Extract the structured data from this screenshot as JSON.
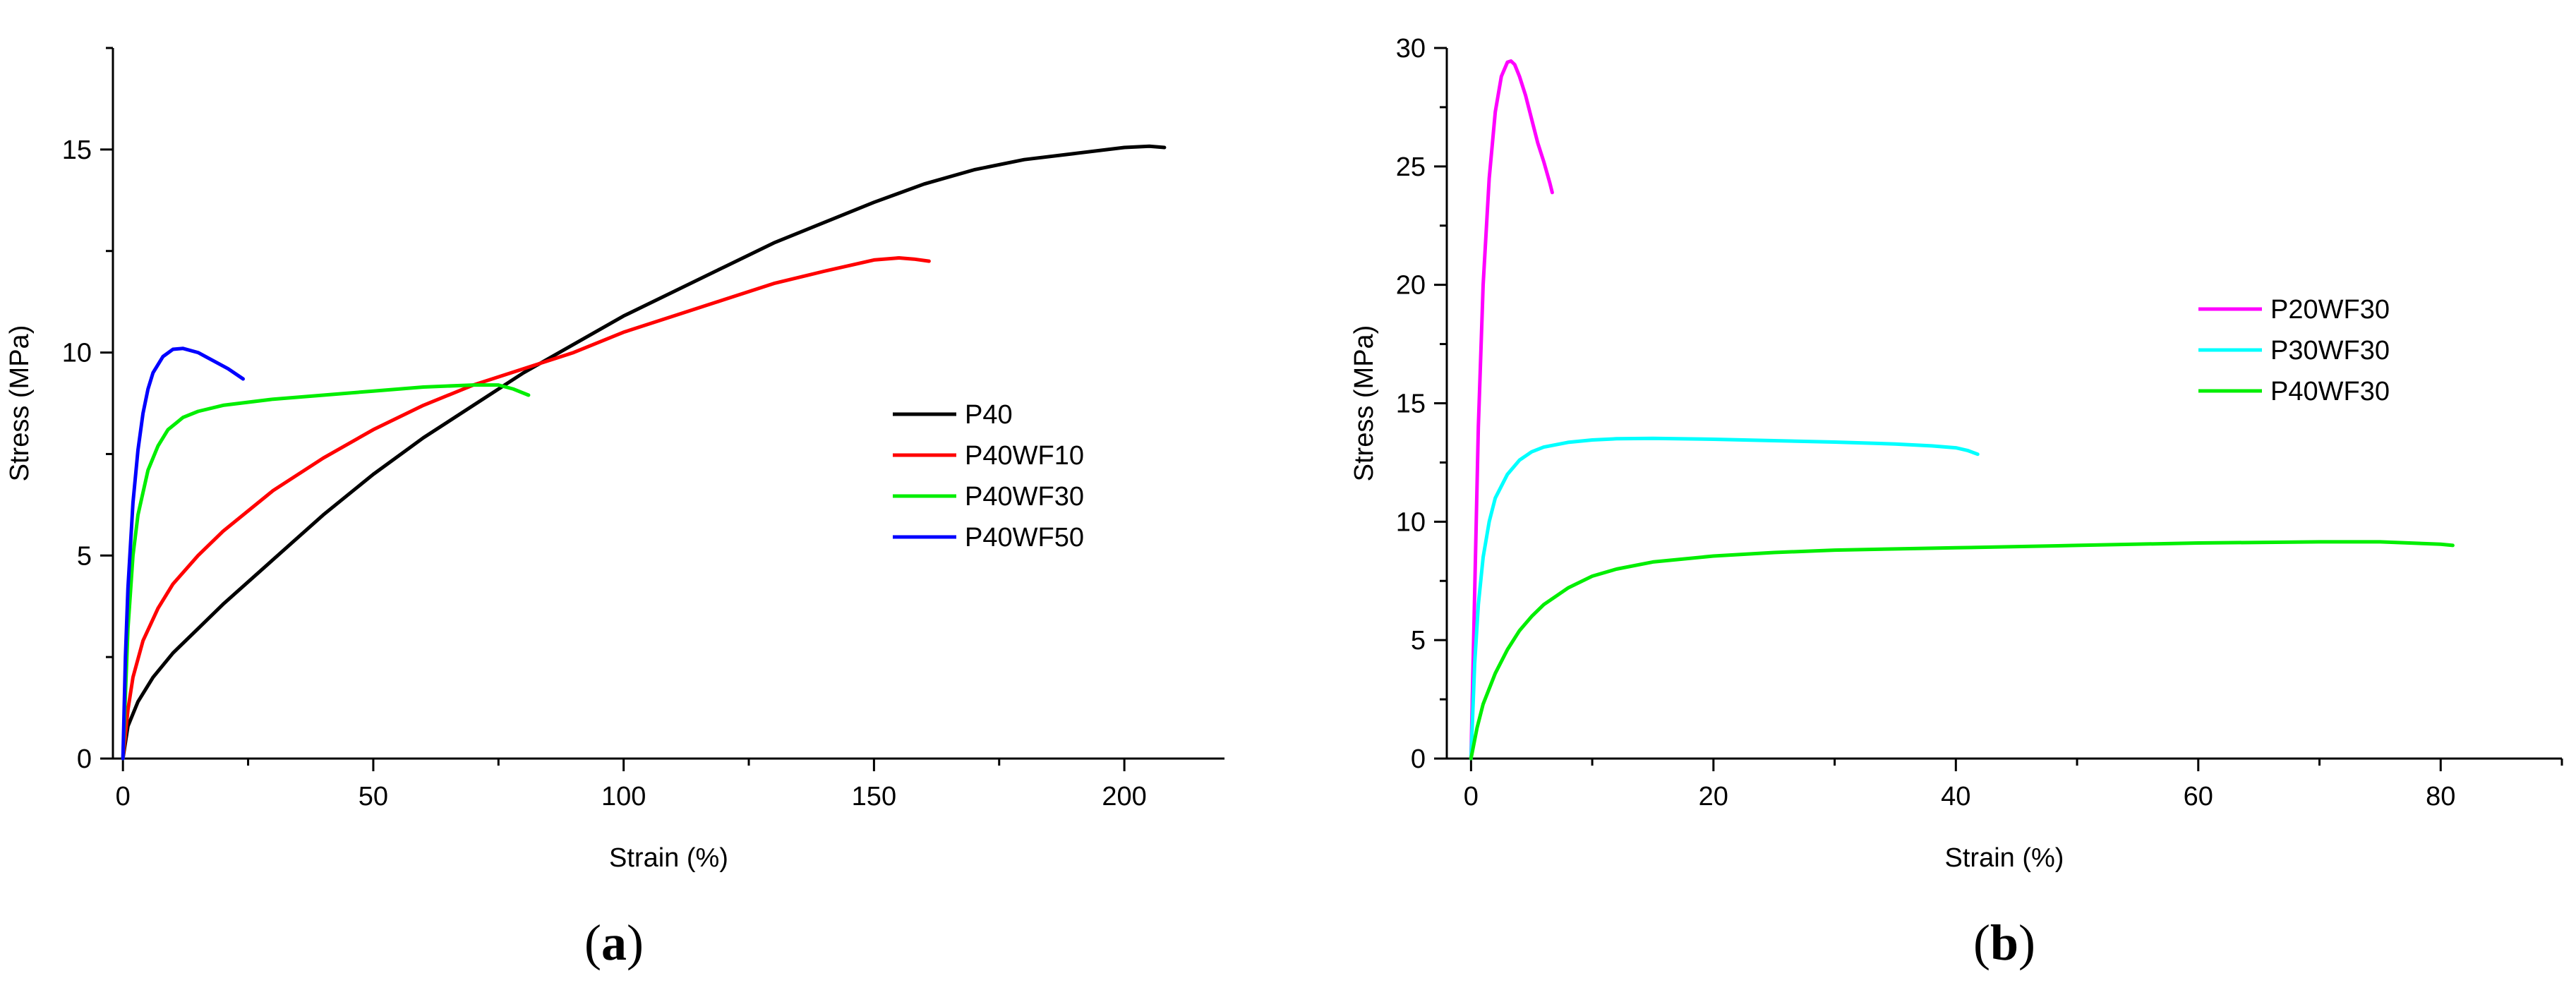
{
  "chart_data": [
    {
      "type": "line",
      "panel_label": "(a)",
      "panel_letter": "a",
      "xlabel": "Strain (%)",
      "ylabel": "Stress (MPa)",
      "xlim": [
        -2,
        220
      ],
      "ylim": [
        0,
        17.5
      ],
      "xticks": [
        0,
        50,
        100,
        150,
        200
      ],
      "yticks": [
        0,
        5,
        10,
        15
      ],
      "legend_position": "center-right",
      "series": [
        {
          "name": "P40",
          "color": "#000000",
          "x": [
            0,
            1,
            3,
            6,
            10,
            15,
            20,
            30,
            40,
            50,
            60,
            70,
            80,
            90,
            100,
            110,
            120,
            130,
            140,
            150,
            160,
            170,
            180,
            190,
            200,
            205,
            208
          ],
          "y": [
            0,
            0.8,
            1.4,
            2.0,
            2.6,
            3.2,
            3.8,
            4.9,
            6.0,
            7.0,
            7.9,
            8.7,
            9.5,
            10.2,
            10.9,
            11.5,
            12.1,
            12.7,
            13.2,
            13.7,
            14.15,
            14.5,
            14.75,
            14.9,
            15.05,
            15.08,
            15.05
          ]
        },
        {
          "name": "P40WF10",
          "color": "#ff0000",
          "x": [
            0,
            1,
            2,
            4,
            7,
            10,
            15,
            20,
            30,
            40,
            50,
            60,
            70,
            80,
            90,
            100,
            110,
            120,
            130,
            140,
            150,
            155,
            158,
            161
          ],
          "y": [
            0,
            1.2,
            2.0,
            2.9,
            3.7,
            4.3,
            5.0,
            5.6,
            6.6,
            7.4,
            8.1,
            8.7,
            9.2,
            9.6,
            10.0,
            10.5,
            10.9,
            11.3,
            11.7,
            12.0,
            12.28,
            12.33,
            12.3,
            12.25
          ]
        },
        {
          "name": "P40WF30",
          "color": "#00ee00",
          "x": [
            0,
            1,
            2,
            3,
            5,
            7,
            9,
            12,
            15,
            20,
            30,
            40,
            50,
            60,
            70,
            75,
            78,
            81
          ],
          "y": [
            0,
            3.2,
            5.0,
            6.0,
            7.1,
            7.7,
            8.1,
            8.4,
            8.55,
            8.7,
            8.85,
            8.95,
            9.05,
            9.15,
            9.2,
            9.2,
            9.1,
            8.95
          ]
        },
        {
          "name": "P40WF50",
          "color": "#0000ff",
          "x": [
            0,
            0.5,
            1,
            2,
            3,
            4,
            5,
            6,
            8,
            10,
            12,
            15,
            18,
            21,
            24
          ],
          "y": [
            0,
            2.5,
            4.2,
            6.3,
            7.6,
            8.5,
            9.1,
            9.5,
            9.9,
            10.08,
            10.1,
            10.0,
            9.8,
            9.6,
            9.35
          ]
        }
      ]
    },
    {
      "type": "line",
      "panel_label": "(b)",
      "panel_letter": "b",
      "xlabel": "Strain (%)",
      "ylabel": "Stress (MPa)",
      "xlim": [
        -2,
        90
      ],
      "ylim": [
        0,
        30
      ],
      "xticks": [
        0,
        20,
        40,
        60,
        80
      ],
      "yticks": [
        0,
        5,
        10,
        15,
        20,
        25,
        30
      ],
      "legend_position": "upper-right",
      "series": [
        {
          "name": "P20WF30",
          "color": "#ff00ff",
          "x": [
            0,
            0.3,
            0.6,
            1.0,
            1.5,
            2.0,
            2.5,
            3.0,
            3.3,
            3.6,
            4.0,
            4.5,
            5.0,
            5.5,
            6.0,
            6.5,
            6.7
          ],
          "y": [
            0,
            7,
            14,
            20,
            24.5,
            27.3,
            28.8,
            29.4,
            29.45,
            29.3,
            28.8,
            28.0,
            27.0,
            26.0,
            25.2,
            24.3,
            23.9
          ]
        },
        {
          "name": "P30WF30",
          "color": "#00ffff",
          "x": [
            0,
            0.3,
            0.6,
            1,
            1.5,
            2,
            3,
            4,
            5,
            6,
            8,
            10,
            12,
            15,
            20,
            25,
            30,
            35,
            38,
            40,
            41,
            41.8
          ],
          "y": [
            0,
            4.0,
            6.5,
            8.5,
            10.0,
            11.0,
            12.0,
            12.6,
            12.95,
            13.15,
            13.35,
            13.45,
            13.5,
            13.52,
            13.48,
            13.42,
            13.36,
            13.28,
            13.2,
            13.12,
            13.0,
            12.85
          ]
        },
        {
          "name": "P40WF30",
          "color": "#00ee00",
          "x": [
            0,
            0.5,
            1,
            2,
            3,
            4,
            5,
            6,
            8,
            10,
            12,
            15,
            20,
            25,
            30,
            40,
            50,
            60,
            70,
            75,
            80,
            81
          ],
          "y": [
            0,
            1.3,
            2.3,
            3.6,
            4.6,
            5.4,
            6.0,
            6.5,
            7.2,
            7.7,
            8.0,
            8.3,
            8.55,
            8.7,
            8.8,
            8.9,
            9.0,
            9.1,
            9.15,
            9.15,
            9.05,
            9.0
          ]
        }
      ]
    }
  ]
}
